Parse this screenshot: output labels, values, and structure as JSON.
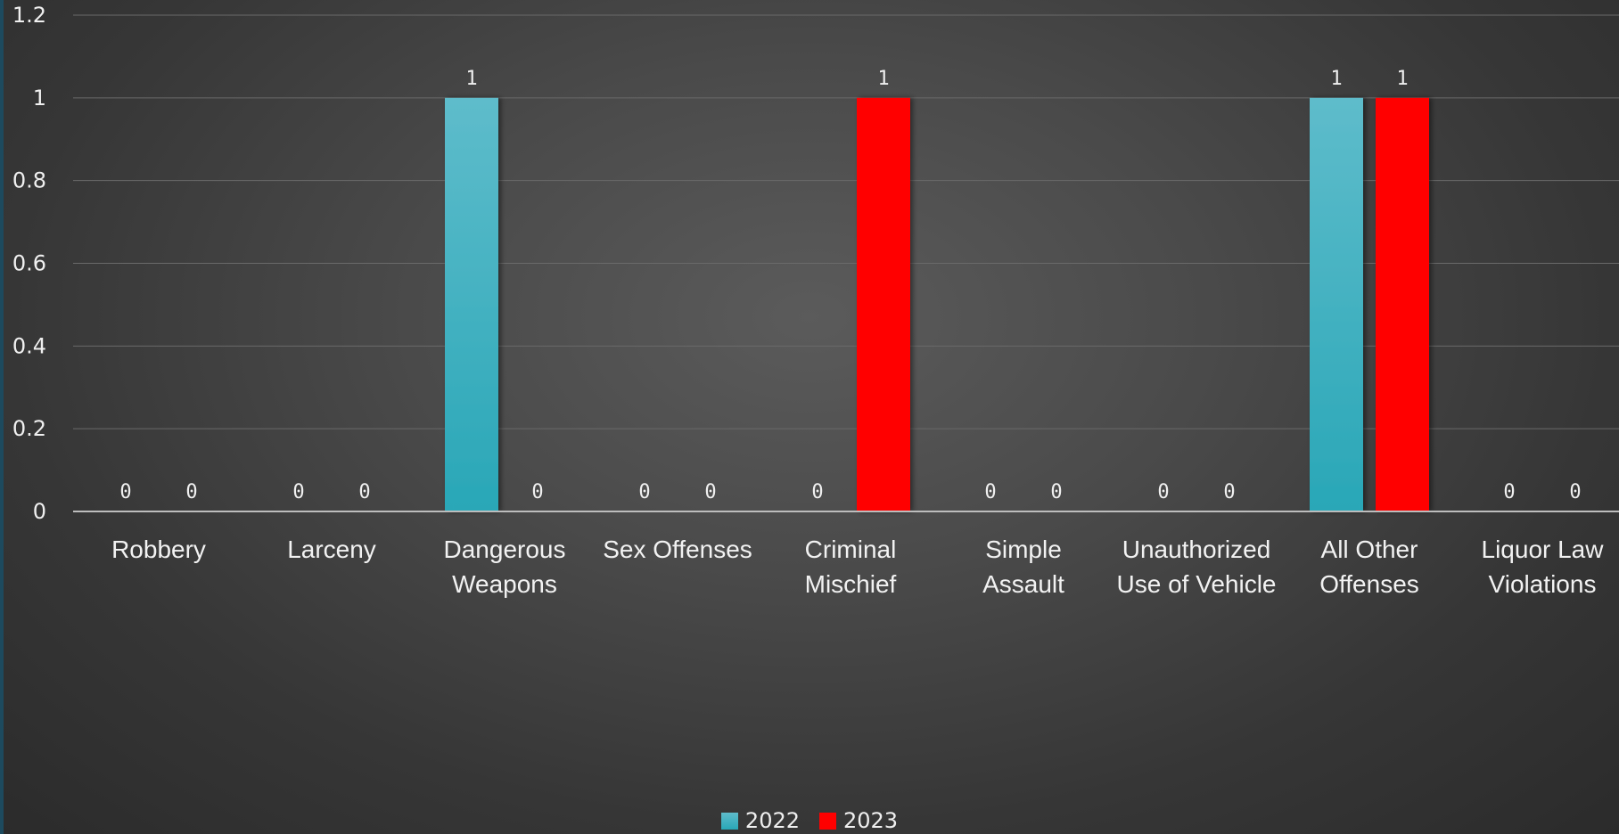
{
  "chart_data": {
    "type": "bar",
    "categories": [
      [
        "Robbery"
      ],
      [
        "Larceny"
      ],
      [
        "Dangerous",
        "Weapons"
      ],
      [
        "Sex Offenses"
      ],
      [
        "Criminal",
        "Mischief"
      ],
      [
        "Simple",
        "Assault"
      ],
      [
        "Unauthorized",
        "Use of Vehicle"
      ],
      [
        "All Other",
        "Offenses"
      ],
      [
        "Liquor Law",
        "Violations"
      ]
    ],
    "series": [
      {
        "name": "2022",
        "color": "#39b1c4",
        "values": [
          0,
          0,
          1,
          0,
          0,
          0,
          0,
          1,
          0
        ],
        "data_labels": [
          "0",
          "0",
          "1",
          "0",
          "0",
          "0",
          "0",
          "1",
          "0"
        ]
      },
      {
        "name": "2023",
        "color": "#ff0000",
        "values": [
          0,
          0,
          0,
          0,
          1,
          0,
          0,
          1,
          0
        ],
        "data_labels": [
          "0",
          "0",
          "0",
          "0",
          "1",
          "0",
          "0",
          "1",
          "0"
        ]
      }
    ],
    "ylim": [
      0,
      1.2
    ],
    "yticks": [
      0,
      0.2,
      0.4,
      0.6,
      0.8,
      1,
      1.2
    ],
    "ytick_labels": [
      "0",
      "0.2",
      "0.4",
      "0.6",
      "0.8",
      "1",
      "1.2"
    ],
    "title": "",
    "xlabel": "",
    "ylabel": "",
    "grid": true,
    "legend_position": "bottom"
  }
}
